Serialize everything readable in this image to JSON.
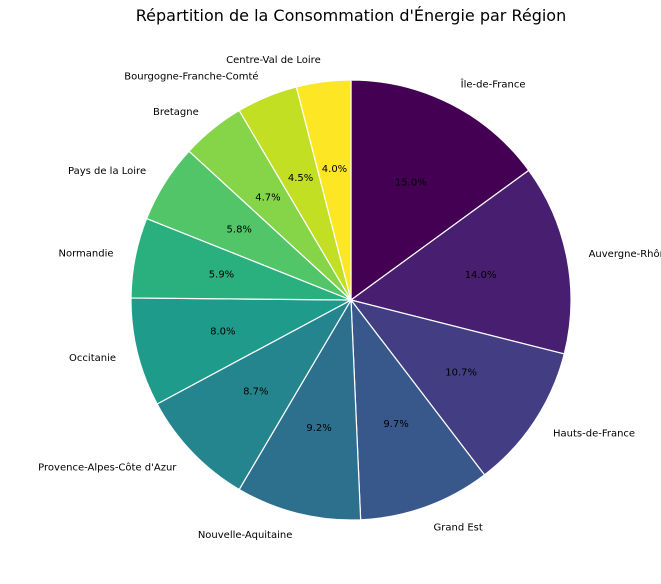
{
  "chart_data": {
    "type": "pie",
    "title": "Répartition de la Consommation d'Énergie par Région",
    "start_angle_deg": 90,
    "direction": "clockwise",
    "slices": [
      {
        "label": "Île-de-France",
        "value": 15.0,
        "pct_label": "15.0%",
        "color": "#440154"
      },
      {
        "label": "Auvergne-Rhône-Alpes",
        "value": 14.0,
        "pct_label": "14.0%",
        "color": "#481e70"
      },
      {
        "label": "Hauts-de-France",
        "value": 10.7,
        "pct_label": "10.7%",
        "color": "#433d84"
      },
      {
        "label": "Grand Est",
        "value": 9.7,
        "pct_label": "9.7%",
        "color": "#38588c"
      },
      {
        "label": "Nouvelle-Aquitaine",
        "value": 9.2,
        "pct_label": "9.2%",
        "color": "#2d708e"
      },
      {
        "label": "Provence-Alpes-Côte d'Azur",
        "value": 8.7,
        "pct_label": "8.7%",
        "color": "#25858e"
      },
      {
        "label": "Occitanie",
        "value": 8.0,
        "pct_label": "8.0%",
        "color": "#1e9b8a"
      },
      {
        "label": "Normandie",
        "value": 5.9,
        "pct_label": "5.9%",
        "color": "#2ab07f"
      },
      {
        "label": "Pays de la Loire",
        "value": 5.8,
        "pct_label": "5.8%",
        "color": "#52c569"
      },
      {
        "label": "Bretagne",
        "value": 4.7,
        "pct_label": "4.7%",
        "color": "#86d549"
      },
      {
        "label": "Bourgogne-Franche-Comté",
        "value": 4.5,
        "pct_label": "4.5%",
        "color": "#c2df23"
      },
      {
        "label": "Centre-Val de Loire",
        "value": 4.0,
        "pct_label": "4.0%",
        "color": "#fde725"
      }
    ]
  }
}
